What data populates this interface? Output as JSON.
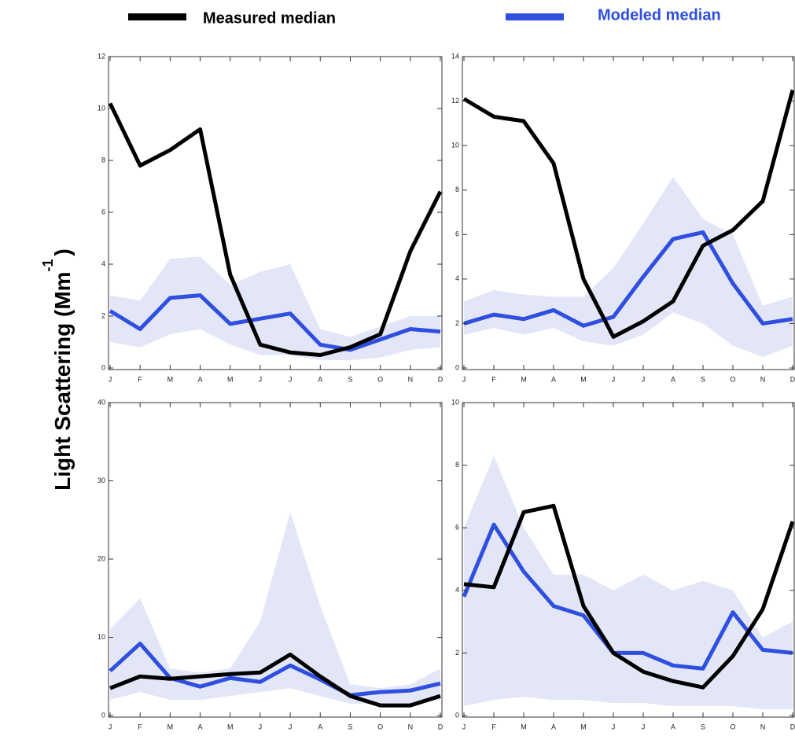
{
  "legend_position": "top",
  "y_label": {
    "text": "Light Scattering (Mm",
    "superscript": "-1",
    "close": ")"
  },
  "chart_data": [
    {
      "type": "line",
      "categories": [
        "J",
        "F",
        "M",
        "A",
        "M",
        "J",
        "J",
        "A",
        "S",
        "O",
        "N",
        "D"
      ],
      "ylim": [
        0,
        12
      ],
      "yticks": [
        0,
        2,
        4,
        6,
        8,
        10,
        12
      ],
      "band": {
        "color": "#e3e6f7",
        "high": [
          2.8,
          2.6,
          4.2,
          4.3,
          3.2,
          3.7,
          4.0,
          1.5,
          1.2,
          1.6,
          2.0,
          2.0
        ],
        "low": [
          1.0,
          0.8,
          1.3,
          1.5,
          0.9,
          0.5,
          0.5,
          0.3,
          0.3,
          0.4,
          0.7,
          0.8
        ]
      },
      "series": [
        {
          "name": "Measured median",
          "color": "#000000",
          "values": [
            10.2,
            7.8,
            8.4,
            9.2,
            3.6,
            0.9,
            0.6,
            0.5,
            0.8,
            1.3,
            4.5,
            6.8
          ]
        },
        {
          "name": "Modeled median",
          "color": "#2f4fe0",
          "values": [
            2.2,
            1.5,
            2.7,
            2.8,
            1.7,
            1.9,
            2.1,
            0.9,
            0.7,
            1.1,
            1.5,
            1.4
          ]
        }
      ]
    },
    {
      "type": "line",
      "categories": [
        "J",
        "F",
        "M",
        "A",
        "M",
        "J",
        "J",
        "A",
        "S",
        "O",
        "N",
        "D"
      ],
      "ylim": [
        0,
        14
      ],
      "yticks": [
        0,
        2,
        4,
        6,
        8,
        10,
        12,
        14
      ],
      "band": {
        "color": "#e3e6f7",
        "high": [
          3.0,
          3.5,
          3.3,
          3.2,
          3.2,
          4.5,
          6.5,
          8.6,
          6.7,
          6.0,
          2.8,
          3.2
        ],
        "low": [
          1.5,
          1.8,
          1.5,
          1.8,
          1.2,
          1.0,
          1.5,
          2.5,
          2.0,
          1.0,
          0.5,
          1.0
        ]
      },
      "series": [
        {
          "name": "Measured median",
          "color": "#000000",
          "values": [
            12.1,
            11.3,
            11.1,
            9.2,
            4.0,
            1.4,
            2.1,
            3.0,
            5.5,
            6.2,
            7.5,
            12.5
          ]
        },
        {
          "name": "Modeled median",
          "color": "#2f4fe0",
          "values": [
            2.0,
            2.4,
            2.2,
            2.6,
            1.9,
            2.3,
            4.1,
            5.8,
            6.1,
            3.8,
            2.0,
            2.2
          ]
        }
      ]
    },
    {
      "type": "line",
      "categories": [
        "J",
        "F",
        "M",
        "A",
        "M",
        "J",
        "J",
        "A",
        "S",
        "O",
        "N",
        "D"
      ],
      "ylim": [
        0,
        40
      ],
      "yticks": [
        0,
        10,
        20,
        30,
        40
      ],
      "band": {
        "color": "#e3e6f7",
        "high": [
          11,
          15,
          6,
          5.5,
          6,
          12,
          26,
          14,
          4,
          3.5,
          4,
          6
        ],
        "low": [
          2,
          3,
          2,
          2,
          2.5,
          3,
          3.5,
          2.5,
          1.5,
          1.5,
          1.5,
          2
        ]
      },
      "series": [
        {
          "name": "Measured median",
          "color": "#000000",
          "values": [
            3.5,
            5.0,
            4.7,
            5.0,
            5.3,
            5.5,
            7.8,
            5.0,
            2.5,
            1.3,
            1.3,
            2.5
          ]
        },
        {
          "name": "Modeled median",
          "color": "#2f4fe0",
          "values": [
            5.7,
            9.2,
            4.8,
            3.7,
            4.8,
            4.3,
            6.4,
            4.6,
            2.6,
            3.0,
            3.2,
            4.1
          ]
        }
      ]
    },
    {
      "type": "line",
      "categories": [
        "J",
        "F",
        "M",
        "A",
        "M",
        "J",
        "J",
        "A",
        "S",
        "O",
        "N",
        "D"
      ],
      "ylim": [
        0,
        10
      ],
      "yticks": [
        0,
        2,
        4,
        6,
        8,
        10
      ],
      "band": {
        "color": "#e3e6f7",
        "high": [
          6,
          8.3,
          6,
          4.5,
          4.5,
          4,
          4.5,
          4,
          4.3,
          4,
          2.5,
          3
        ],
        "low": [
          0.3,
          0.5,
          0.6,
          0.5,
          0.5,
          0.4,
          0.4,
          0.3,
          0.3,
          0.3,
          0.2,
          0.2
        ]
      },
      "series": [
        {
          "name": "Measured median",
          "color": "#000000",
          "values": [
            4.2,
            4.1,
            6.5,
            6.7,
            3.5,
            2.0,
            1.4,
            1.1,
            0.9,
            1.9,
            3.4,
            6.2
          ]
        },
        {
          "name": "Modeled median",
          "color": "#2f4fe0",
          "values": [
            3.8,
            6.1,
            4.6,
            3.5,
            3.2,
            2.0,
            2.0,
            1.6,
            1.5,
            3.3,
            2.1,
            2.0
          ]
        }
      ]
    }
  ]
}
